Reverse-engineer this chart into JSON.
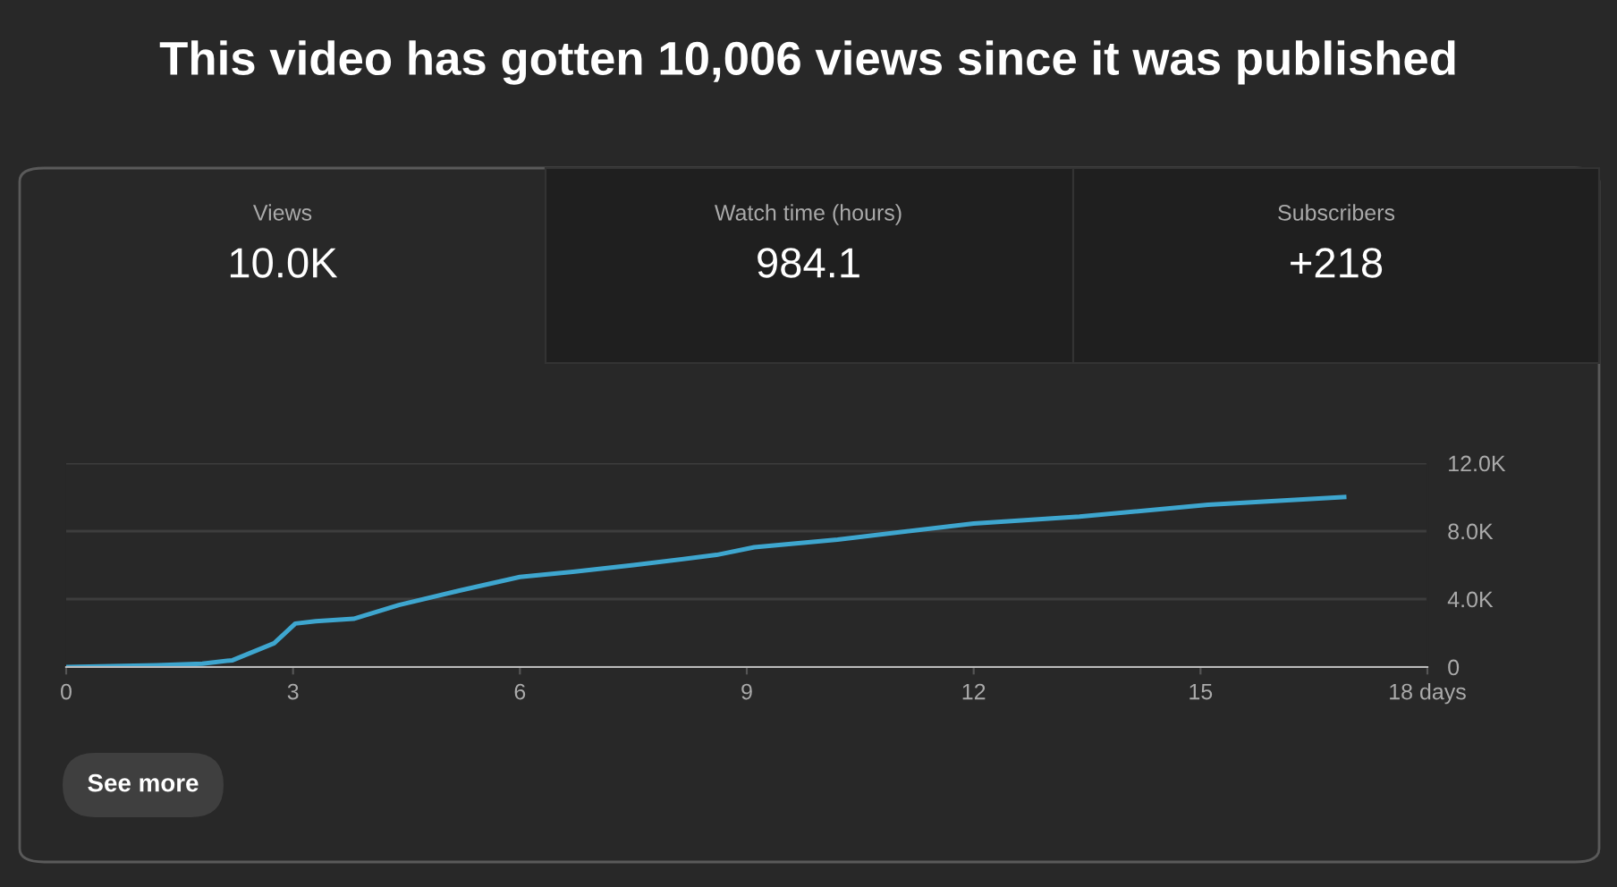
{
  "chart_data": {
    "type": "line",
    "title": "This video has gotten 10,006 views since it was published",
    "annotations": [
      "Views",
      "10.0K",
      "Watch time (hours)",
      "984.1",
      "Subscribers",
      "+218",
      "See more"
    ],
    "x": [
      0,
      1.2,
      1.8,
      2.2,
      2.75,
      3.03,
      3.3,
      3.8,
      4.4,
      5.2,
      6.0,
      6.7,
      7.5,
      8.6,
      9.1,
      10.2,
      12.0,
      13.4,
      15.1,
      16.9
    ],
    "series": [
      {
        "color": "#3ea6cf",
        "values": [
          0,
          100,
          200,
          400,
          1400,
          2560,
          2700,
          2840,
          3650,
          4500,
          5300,
          5600,
          6000,
          6600,
          7050,
          7500,
          8450,
          8850,
          9550,
          10000
        ]
      }
    ],
    "xlim": [
      0,
      18
    ],
    "xticks": [
      0,
      3,
      6,
      9,
      12,
      15,
      {
        "value": 18,
        "label": "18 days"
      }
    ],
    "ylim": [
      0,
      12000
    ],
    "yticks": [
      0,
      {
        "value": 4000,
        "label": "4.0K"
      },
      {
        "value": 8000,
        "label": "8.0K"
      },
      {
        "value": 12000,
        "label": "12.0K"
      }
    ],
    "grid": "y",
    "marker": "none",
    "line_style": "solid"
  }
}
